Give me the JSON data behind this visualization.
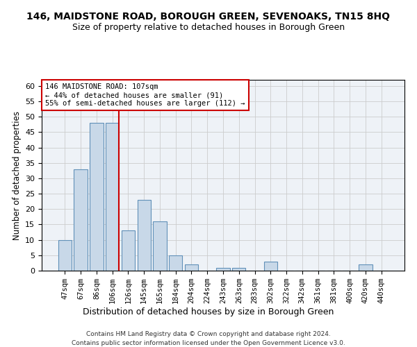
{
  "title": "146, MAIDSTONE ROAD, BOROUGH GREEN, SEVENOAKS, TN15 8HQ",
  "subtitle": "Size of property relative to detached houses in Borough Green",
  "xlabel": "Distribution of detached houses by size in Borough Green",
  "ylabel": "Number of detached properties",
  "categories": [
    "47sqm",
    "67sqm",
    "86sqm",
    "106sqm",
    "126sqm",
    "145sqm",
    "165sqm",
    "184sqm",
    "204sqm",
    "224sqm",
    "243sqm",
    "263sqm",
    "283sqm",
    "302sqm",
    "322sqm",
    "342sqm",
    "361sqm",
    "381sqm",
    "400sqm",
    "420sqm",
    "440sqm"
  ],
  "values": [
    10,
    33,
    48,
    48,
    13,
    23,
    16,
    5,
    2,
    0,
    1,
    1,
    0,
    3,
    0,
    0,
    0,
    0,
    0,
    2,
    0
  ],
  "bar_color": "#c8d8e8",
  "bar_edge_color": "#6090b8",
  "annotation_title": "146 MAIDSTONE ROAD: 107sqm",
  "annotation_line1": "← 44% of detached houses are smaller (91)",
  "annotation_line2": "55% of semi-detached houses are larger (112) →",
  "annotation_box_color": "#ffffff",
  "annotation_box_edge_color": "#cc0000",
  "vline_color": "#cc0000",
  "vline_x_index": 3,
  "ylim": [
    0,
    62
  ],
  "yticks": [
    0,
    5,
    10,
    15,
    20,
    25,
    30,
    35,
    40,
    45,
    50,
    55,
    60
  ],
  "background_color": "#eef2f7",
  "footer_line1": "Contains HM Land Registry data © Crown copyright and database right 2024.",
  "footer_line2": "Contains public sector information licensed under the Open Government Licence v3.0."
}
